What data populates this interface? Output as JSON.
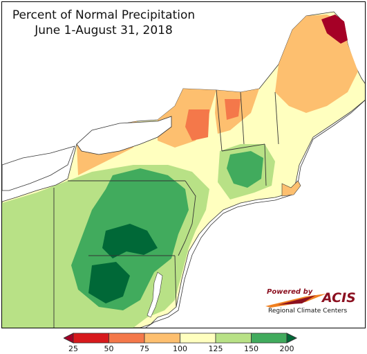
{
  "title": {
    "line1": "Percent of Normal Precipitation",
    "line2": "June 1-August 31, 2018"
  },
  "logo": {
    "powered_by": "Powered by",
    "name": "ACIS",
    "subtitle": "Regional Climate Centers"
  },
  "legend": {
    "ticks": [
      "25",
      "50",
      "75",
      "100",
      "125",
      "150",
      "200"
    ],
    "colors": [
      "#d7191c",
      "#f4784a",
      "#fdbf6f",
      "#ffffbf",
      "#b8e186",
      "#41ab5d"
    ],
    "under_color": "#a50026",
    "over_color": "#006837"
  },
  "palette": {
    "lake": "#ffffff",
    "outside": "#ffffff",
    "border": "#333333"
  }
}
